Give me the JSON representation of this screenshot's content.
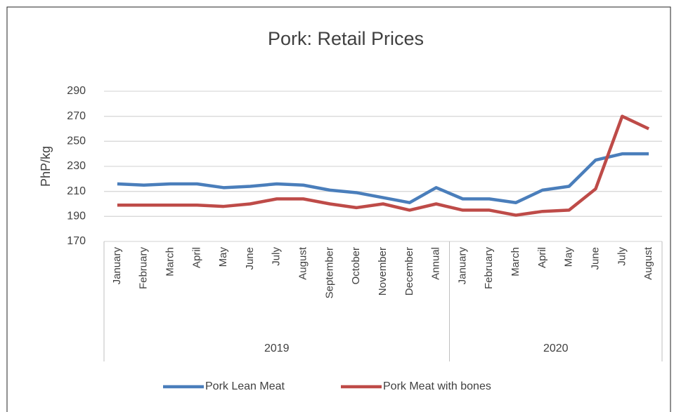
{
  "chart_data": {
    "type": "line",
    "title": "Pork: Retail Prices",
    "y_label": "PhP/kg",
    "groups": [
      {
        "name": "2019",
        "categories": [
          "January",
          "February",
          "March",
          "April",
          "May",
          "June",
          "July",
          "August",
          "September",
          "October",
          "November",
          "December",
          "Annual"
        ]
      },
      {
        "name": "2020",
        "categories": [
          "January",
          "February",
          "March",
          "April",
          "May",
          "June",
          "July",
          "August"
        ]
      }
    ],
    "series": [
      {
        "name": "Pork Lean Meat",
        "color": "#4a7ebb",
        "values": [
          216,
          215,
          216,
          216,
          213,
          214,
          216,
          215,
          211,
          209,
          205,
          201,
          213,
          204,
          204,
          201,
          211,
          214,
          235,
          240,
          240
        ]
      },
      {
        "name": "Pork Meat with bones",
        "color": "#be4b48",
        "values": [
          199,
          199,
          199,
          199,
          198,
          200,
          204,
          204,
          200,
          197,
          200,
          195,
          200,
          195,
          195,
          191,
          194,
          195,
          212,
          270,
          260
        ]
      }
    ],
    "ylim": [
      170,
      290
    ],
    "yticks": [
      170,
      190,
      210,
      230,
      250,
      270,
      290
    ],
    "grid": true,
    "legend": "bottom"
  }
}
